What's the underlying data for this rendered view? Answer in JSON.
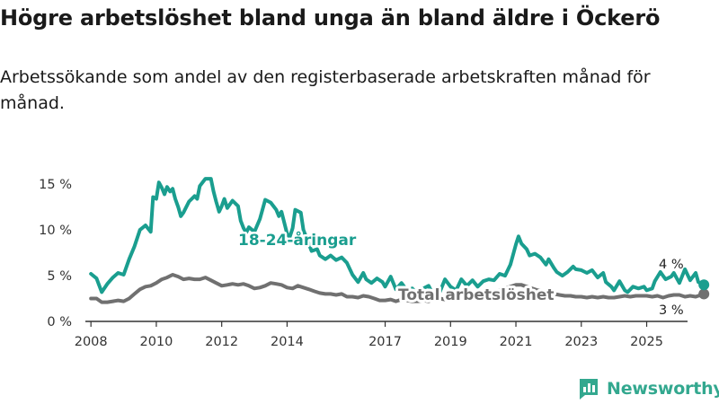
{
  "title": "Högre arbetslöshet bland unga än bland äldre i Öckerö",
  "subtitle": "Arbetssökande som andel av den registerbaserade arbetskraften månad för månad.",
  "brand": "Newsworthy",
  "colors": {
    "youth": "#1a9e8f",
    "total": "#707070",
    "text": "#333333",
    "axis": "#333333",
    "brand": "#33a88f"
  },
  "chart_data": {
    "type": "line",
    "title": "Högre arbetslöshet bland unga än bland äldre i Öckerö",
    "xlabel": "",
    "ylabel": "",
    "xlim": [
      2007.83,
      2026.25
    ],
    "ylim": [
      0,
      16
    ],
    "x_ticks": [
      2008,
      2010,
      2012,
      2014,
      2017,
      2019,
      2021,
      2023,
      2025
    ],
    "x_tick_labels": [
      "2008",
      "2010",
      "2012",
      "2014",
      "2017",
      "2019",
      "2021",
      "2023",
      "2025"
    ],
    "y_ticks": [
      0,
      5,
      10,
      15
    ],
    "y_tick_labels": [
      "0 %",
      "5 %",
      "10 %",
      "15 %"
    ],
    "grid": false,
    "series": [
      {
        "name": "18-24-åringar",
        "label": "18-24-åringar",
        "end_label": "4 %",
        "points": [
          [
            2008.0,
            5.2
          ],
          [
            2008.17,
            4.7
          ],
          [
            2008.33,
            3.2
          ],
          [
            2008.5,
            4.1
          ],
          [
            2008.67,
            4.8
          ],
          [
            2008.83,
            5.3
          ],
          [
            2009.0,
            5.1
          ],
          [
            2009.17,
            6.8
          ],
          [
            2009.33,
            8.2
          ],
          [
            2009.5,
            10.0
          ],
          [
            2009.67,
            10.5
          ],
          [
            2009.83,
            9.8
          ],
          [
            2009.9,
            13.6
          ],
          [
            2010.0,
            13.4
          ],
          [
            2010.08,
            15.2
          ],
          [
            2010.17,
            14.6
          ],
          [
            2010.25,
            13.9
          ],
          [
            2010.33,
            14.7
          ],
          [
            2010.42,
            14.2
          ],
          [
            2010.5,
            14.5
          ],
          [
            2010.58,
            13.4
          ],
          [
            2010.67,
            12.5
          ],
          [
            2010.75,
            11.5
          ],
          [
            2010.83,
            11.9
          ],
          [
            2011.0,
            13.1
          ],
          [
            2011.17,
            13.7
          ],
          [
            2011.25,
            13.4
          ],
          [
            2011.33,
            14.8
          ],
          [
            2011.5,
            15.6
          ],
          [
            2011.67,
            15.6
          ],
          [
            2011.75,
            14.2
          ],
          [
            2011.83,
            13.1
          ],
          [
            2011.92,
            12.0
          ],
          [
            2012.0,
            12.6
          ],
          [
            2012.08,
            13.4
          ],
          [
            2012.17,
            12.4
          ],
          [
            2012.33,
            13.2
          ],
          [
            2012.5,
            12.6
          ],
          [
            2012.58,
            11.0
          ],
          [
            2012.67,
            10.2
          ],
          [
            2012.75,
            9.7
          ],
          [
            2012.83,
            10.3
          ],
          [
            2013.0,
            9.8
          ],
          [
            2013.17,
            11.2
          ],
          [
            2013.33,
            13.3
          ],
          [
            2013.5,
            13.0
          ],
          [
            2013.67,
            12.2
          ],
          [
            2013.75,
            11.5
          ],
          [
            2013.83,
            12.0
          ],
          [
            2014.0,
            9.6
          ],
          [
            2014.08,
            9.2
          ],
          [
            2014.17,
            10.2
          ],
          [
            2014.25,
            12.2
          ],
          [
            2014.42,
            11.9
          ],
          [
            2014.5,
            10.0
          ],
          [
            2014.75,
            7.7
          ],
          [
            2014.92,
            7.9
          ],
          [
            2015.0,
            7.2
          ],
          [
            2015.17,
            6.8
          ],
          [
            2015.33,
            7.2
          ],
          [
            2015.5,
            6.7
          ],
          [
            2015.67,
            7.0
          ],
          [
            2015.83,
            6.4
          ],
          [
            2016.0,
            5.1
          ],
          [
            2016.17,
            4.3
          ],
          [
            2016.33,
            5.3
          ],
          [
            2016.42,
            4.6
          ],
          [
            2016.58,
            4.2
          ],
          [
            2016.75,
            4.7
          ],
          [
            2016.92,
            4.3
          ],
          [
            2017.0,
            3.8
          ],
          [
            2017.17,
            4.9
          ],
          [
            2017.33,
            3.5
          ],
          [
            2017.5,
            4.2
          ],
          [
            2017.67,
            3.4
          ],
          [
            2017.83,
            3.6
          ],
          [
            2018.0,
            2.9
          ],
          [
            2018.17,
            3.6
          ],
          [
            2018.33,
            3.9
          ],
          [
            2018.5,
            2.7
          ],
          [
            2018.67,
            3.2
          ],
          [
            2018.83,
            4.6
          ],
          [
            2019.0,
            3.8
          ],
          [
            2019.17,
            3.4
          ],
          [
            2019.33,
            4.6
          ],
          [
            2019.5,
            3.9
          ],
          [
            2019.67,
            4.5
          ],
          [
            2019.83,
            3.8
          ],
          [
            2020.0,
            4.4
          ],
          [
            2020.17,
            4.6
          ],
          [
            2020.33,
            4.5
          ],
          [
            2020.5,
            5.2
          ],
          [
            2020.67,
            5.0
          ],
          [
            2020.83,
            6.2
          ],
          [
            2021.0,
            8.4
          ],
          [
            2021.08,
            9.3
          ],
          [
            2021.17,
            8.5
          ],
          [
            2021.33,
            7.9
          ],
          [
            2021.42,
            7.2
          ],
          [
            2021.58,
            7.4
          ],
          [
            2021.75,
            7.0
          ],
          [
            2021.92,
            6.2
          ],
          [
            2022.0,
            6.8
          ],
          [
            2022.17,
            5.8
          ],
          [
            2022.25,
            5.4
          ],
          [
            2022.42,
            5.0
          ],
          [
            2022.58,
            5.4
          ],
          [
            2022.75,
            6.0
          ],
          [
            2022.83,
            5.7
          ],
          [
            2023.0,
            5.6
          ],
          [
            2023.17,
            5.3
          ],
          [
            2023.33,
            5.6
          ],
          [
            2023.5,
            4.8
          ],
          [
            2023.67,
            5.3
          ],
          [
            2023.75,
            4.3
          ],
          [
            2023.92,
            3.8
          ],
          [
            2024.0,
            3.4
          ],
          [
            2024.17,
            4.4
          ],
          [
            2024.33,
            3.4
          ],
          [
            2024.42,
            3.2
          ],
          [
            2024.58,
            3.8
          ],
          [
            2024.75,
            3.6
          ],
          [
            2024.92,
            3.8
          ],
          [
            2025.0,
            3.4
          ],
          [
            2025.17,
            3.6
          ],
          [
            2025.25,
            4.4
          ],
          [
            2025.42,
            5.4
          ],
          [
            2025.5,
            5.0
          ],
          [
            2025.58,
            4.6
          ],
          [
            2025.75,
            4.9
          ],
          [
            2025.83,
            5.3
          ],
          [
            2026.0,
            4.2
          ],
          [
            2026.17,
            5.7
          ],
          [
            2026.33,
            4.5
          ],
          [
            2026.5,
            5.3
          ],
          [
            2026.58,
            4.3
          ],
          [
            2026.75,
            4.0
          ]
        ]
      },
      {
        "name": "Total arbetslöshet",
        "label": "Total arbetslöshet",
        "end_label": "3 %",
        "points": [
          [
            2008.0,
            2.5
          ],
          [
            2008.17,
            2.5
          ],
          [
            2008.33,
            2.1
          ],
          [
            2008.5,
            2.1
          ],
          [
            2008.67,
            2.2
          ],
          [
            2008.83,
            2.3
          ],
          [
            2009.0,
            2.2
          ],
          [
            2009.17,
            2.5
          ],
          [
            2009.33,
            3.0
          ],
          [
            2009.5,
            3.5
          ],
          [
            2009.67,
            3.8
          ],
          [
            2009.83,
            3.9
          ],
          [
            2010.0,
            4.2
          ],
          [
            2010.17,
            4.6
          ],
          [
            2010.33,
            4.8
          ],
          [
            2010.5,
            5.1
          ],
          [
            2010.67,
            4.9
          ],
          [
            2010.83,
            4.6
          ],
          [
            2011.0,
            4.7
          ],
          [
            2011.17,
            4.6
          ],
          [
            2011.33,
            4.6
          ],
          [
            2011.5,
            4.8
          ],
          [
            2011.67,
            4.5
          ],
          [
            2011.83,
            4.2
          ],
          [
            2012.0,
            3.9
          ],
          [
            2012.17,
            4.0
          ],
          [
            2012.33,
            4.1
          ],
          [
            2012.5,
            4.0
          ],
          [
            2012.67,
            4.1
          ],
          [
            2012.83,
            3.9
          ],
          [
            2013.0,
            3.6
          ],
          [
            2013.17,
            3.7
          ],
          [
            2013.33,
            3.9
          ],
          [
            2013.5,
            4.2
          ],
          [
            2013.67,
            4.1
          ],
          [
            2013.83,
            4.0
          ],
          [
            2014.0,
            3.7
          ],
          [
            2014.17,
            3.6
          ],
          [
            2014.33,
            3.9
          ],
          [
            2014.5,
            3.7
          ],
          [
            2014.67,
            3.5
          ],
          [
            2014.83,
            3.3
          ],
          [
            2015.0,
            3.1
          ],
          [
            2015.17,
            3.0
          ],
          [
            2015.33,
            3.0
          ],
          [
            2015.5,
            2.9
          ],
          [
            2015.67,
            3.0
          ],
          [
            2015.83,
            2.7
          ],
          [
            2016.0,
            2.7
          ],
          [
            2016.17,
            2.6
          ],
          [
            2016.33,
            2.8
          ],
          [
            2016.5,
            2.7
          ],
          [
            2016.67,
            2.5
          ],
          [
            2016.83,
            2.3
          ],
          [
            2017.0,
            2.3
          ],
          [
            2017.17,
            2.4
          ],
          [
            2017.33,
            2.2
          ],
          [
            2017.5,
            2.4
          ],
          [
            2017.67,
            2.3
          ],
          [
            2017.83,
            2.2
          ],
          [
            2018.0,
            2.2
          ],
          [
            2018.17,
            2.3
          ],
          [
            2018.33,
            2.2
          ],
          [
            2018.5,
            2.4
          ],
          [
            2018.67,
            2.5
          ],
          [
            2018.83,
            2.4
          ],
          [
            2019.0,
            2.4
          ],
          [
            2019.17,
            2.5
          ],
          [
            2019.33,
            2.6
          ],
          [
            2019.5,
            2.5
          ],
          [
            2019.67,
            2.6
          ],
          [
            2019.83,
            2.7
          ],
          [
            2020.0,
            2.8
          ],
          [
            2020.17,
            2.9
          ],
          [
            2020.33,
            3.1
          ],
          [
            2020.5,
            3.4
          ],
          [
            2020.67,
            3.6
          ],
          [
            2020.83,
            3.8
          ],
          [
            2021.0,
            4.0
          ],
          [
            2021.17,
            4.0
          ],
          [
            2021.33,
            3.8
          ],
          [
            2021.5,
            3.6
          ],
          [
            2021.67,
            3.4
          ],
          [
            2021.83,
            3.3
          ],
          [
            2022.0,
            3.2
          ],
          [
            2022.17,
            3.0
          ],
          [
            2022.33,
            2.9
          ],
          [
            2022.5,
            2.8
          ],
          [
            2022.67,
            2.8
          ],
          [
            2022.83,
            2.7
          ],
          [
            2023.0,
            2.7
          ],
          [
            2023.17,
            2.6
          ],
          [
            2023.33,
            2.7
          ],
          [
            2023.5,
            2.6
          ],
          [
            2023.67,
            2.7
          ],
          [
            2023.83,
            2.6
          ],
          [
            2024.0,
            2.6
          ],
          [
            2024.17,
            2.7
          ],
          [
            2024.33,
            2.8
          ],
          [
            2024.5,
            2.7
          ],
          [
            2024.67,
            2.8
          ],
          [
            2024.83,
            2.8
          ],
          [
            2025.0,
            2.8
          ],
          [
            2025.17,
            2.7
          ],
          [
            2025.33,
            2.8
          ],
          [
            2025.5,
            2.6
          ],
          [
            2025.67,
            2.8
          ],
          [
            2025.83,
            2.9
          ],
          [
            2026.0,
            2.9
          ],
          [
            2026.17,
            2.7
          ],
          [
            2026.33,
            2.8
          ],
          [
            2026.5,
            2.7
          ],
          [
            2026.75,
            3.0
          ]
        ]
      }
    ]
  }
}
